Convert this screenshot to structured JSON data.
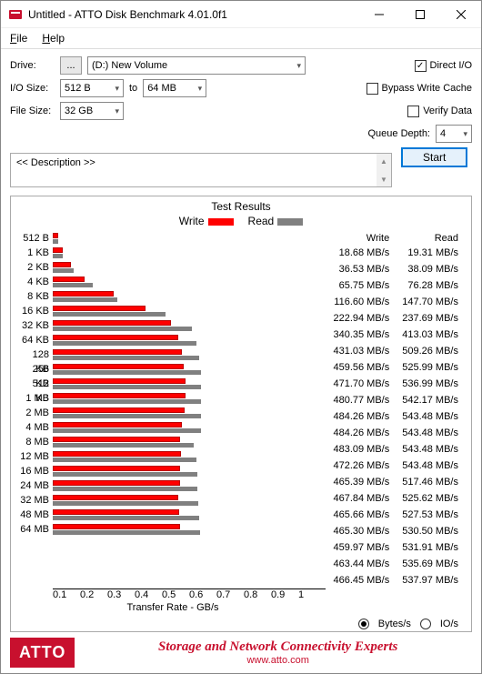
{
  "window": {
    "title": "Untitled - ATTO Disk Benchmark 4.01.0f1",
    "menu": {
      "file": "File",
      "help": "Help"
    }
  },
  "controls": {
    "drive_label": "Drive:",
    "drive_browse": "...",
    "drive_value": "(D:) New Volume",
    "iosize_label": "I/O Size:",
    "iosize_from": "512 B",
    "iosize_to_label": "to",
    "iosize_to": "64 MB",
    "filesize_label": "File Size:",
    "filesize_value": "32 GB",
    "direct_io": "Direct I/O",
    "direct_io_checked": true,
    "bypass": "Bypass Write Cache",
    "bypass_checked": false,
    "verify": "Verify Data",
    "verify_checked": false,
    "queue_label": "Queue Depth:",
    "queue_value": "4",
    "start": "Start",
    "description": "<< Description >>"
  },
  "chart": {
    "title": "Test Results",
    "legend_write": "Write",
    "legend_read": "Read",
    "write_color": "#ff0000",
    "read_color": "#808080",
    "xlabel": "Transfer Rate - GB/s",
    "xmax_gb": 1.0,
    "xticks": [
      "0.1",
      "0.2",
      "0.3",
      "0.4",
      "0.5",
      "0.6",
      "0.7",
      "0.8",
      "0.9",
      "1"
    ],
    "units_bytes": "Bytes/s",
    "units_io": "IO/s",
    "units_selected": "bytes",
    "col_write": "Write",
    "col_read": "Read",
    "rows": [
      {
        "label": "512 B",
        "write": "18.68 MB/s",
        "read": "19.31 MB/s",
        "w_mb": 18.68,
        "r_mb": 19.31
      },
      {
        "label": "1 KB",
        "write": "36.53 MB/s",
        "read": "38.09 MB/s",
        "w_mb": 36.53,
        "r_mb": 38.09
      },
      {
        "label": "2 KB",
        "write": "65.75 MB/s",
        "read": "76.28 MB/s",
        "w_mb": 65.75,
        "r_mb": 76.28
      },
      {
        "label": "4 KB",
        "write": "116.60 MB/s",
        "read": "147.70 MB/s",
        "w_mb": 116.6,
        "r_mb": 147.7
      },
      {
        "label": "8 KB",
        "write": "222.94 MB/s",
        "read": "237.69 MB/s",
        "w_mb": 222.94,
        "r_mb": 237.69
      },
      {
        "label": "16 KB",
        "write": "340.35 MB/s",
        "read": "413.03 MB/s",
        "w_mb": 340.35,
        "r_mb": 413.03
      },
      {
        "label": "32 KB",
        "write": "431.03 MB/s",
        "read": "509.26 MB/s",
        "w_mb": 431.03,
        "r_mb": 509.26
      },
      {
        "label": "64 KB",
        "write": "459.56 MB/s",
        "read": "525.99 MB/s",
        "w_mb": 459.56,
        "r_mb": 525.99
      },
      {
        "label": "128 KB",
        "write": "471.70 MB/s",
        "read": "536.99 MB/s",
        "w_mb": 471.7,
        "r_mb": 536.99
      },
      {
        "label": "256 KB",
        "write": "480.77 MB/s",
        "read": "542.17 MB/s",
        "w_mb": 480.77,
        "r_mb": 542.17
      },
      {
        "label": "512 KB",
        "write": "484.26 MB/s",
        "read": "543.48 MB/s",
        "w_mb": 484.26,
        "r_mb": 543.48
      },
      {
        "label": "1 MB",
        "write": "484.26 MB/s",
        "read": "543.48 MB/s",
        "w_mb": 484.26,
        "r_mb": 543.48
      },
      {
        "label": "2 MB",
        "write": "483.09 MB/s",
        "read": "543.48 MB/s",
        "w_mb": 483.09,
        "r_mb": 543.48
      },
      {
        "label": "4 MB",
        "write": "472.26 MB/s",
        "read": "543.48 MB/s",
        "w_mb": 472.26,
        "r_mb": 543.48
      },
      {
        "label": "8 MB",
        "write": "465.39 MB/s",
        "read": "517.46 MB/s",
        "w_mb": 465.39,
        "r_mb": 517.46
      },
      {
        "label": "12 MB",
        "write": "467.84 MB/s",
        "read": "525.62 MB/s",
        "w_mb": 467.84,
        "r_mb": 525.62
      },
      {
        "label": "16 MB",
        "write": "465.66 MB/s",
        "read": "527.53 MB/s",
        "w_mb": 465.66,
        "r_mb": 527.53
      },
      {
        "label": "24 MB",
        "write": "465.30 MB/s",
        "read": "530.50 MB/s",
        "w_mb": 465.3,
        "r_mb": 530.5
      },
      {
        "label": "32 MB",
        "write": "459.97 MB/s",
        "read": "531.91 MB/s",
        "w_mb": 459.97,
        "r_mb": 531.91
      },
      {
        "label": "48 MB",
        "write": "463.44 MB/s",
        "read": "535.69 MB/s",
        "w_mb": 463.44,
        "r_mb": 535.69
      },
      {
        "label": "64 MB",
        "write": "466.45 MB/s",
        "read": "537.97 MB/s",
        "w_mb": 466.45,
        "r_mb": 537.97
      }
    ]
  },
  "footer": {
    "logo": "ATTO",
    "tagline": "Storage and Network Connectivity Experts",
    "url": "www.atto.com"
  }
}
